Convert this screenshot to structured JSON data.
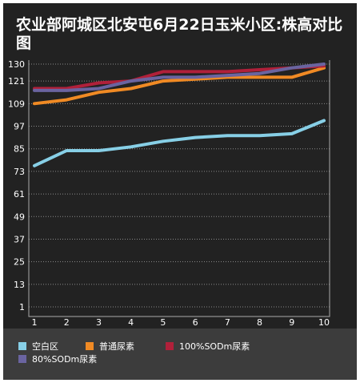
{
  "chart_data": {
    "type": "line",
    "title": "农业部阿城区北安屯6月22日玉米小区:株高对比图",
    "x": [
      1,
      2,
      3,
      4,
      5,
      6,
      7,
      8,
      9,
      10
    ],
    "x_tick_labels": [
      "1",
      "2",
      "3",
      "4",
      "5",
      "6",
      "7",
      "8",
      "9",
      "10"
    ],
    "y_tick_labels": [
      "1",
      "13",
      "25",
      "37",
      "49",
      "61",
      "73",
      "85",
      "97",
      "109",
      "121",
      "130"
    ],
    "y_ticks": [
      1,
      13,
      25,
      37,
      49,
      61,
      73,
      85,
      97,
      109,
      121,
      130
    ],
    "ylim": [
      1,
      130
    ],
    "grid": true,
    "legend_position": "bottom",
    "background_color": "#222222",
    "series": [
      {
        "name": "空白区",
        "color": "#87cfe6",
        "values": [
          76,
          84,
          84,
          86,
          89,
          91,
          92,
          92,
          93,
          100
        ]
      },
      {
        "name": "普通尿素",
        "color": "#f08a24",
        "values": [
          109,
          111,
          115,
          117,
          121,
          122,
          123,
          123,
          123,
          128
        ]
      },
      {
        "name": "100%SODm尿素",
        "color": "#b0203a",
        "values": [
          117,
          117,
          120,
          121,
          126,
          126,
          126,
          127,
          128,
          129
        ]
      },
      {
        "name": "80%SODm尿素",
        "color": "#6a64a0",
        "values": [
          116,
          116,
          117,
          121,
          123,
          123,
          124,
          125,
          128,
          130
        ]
      }
    ]
  }
}
